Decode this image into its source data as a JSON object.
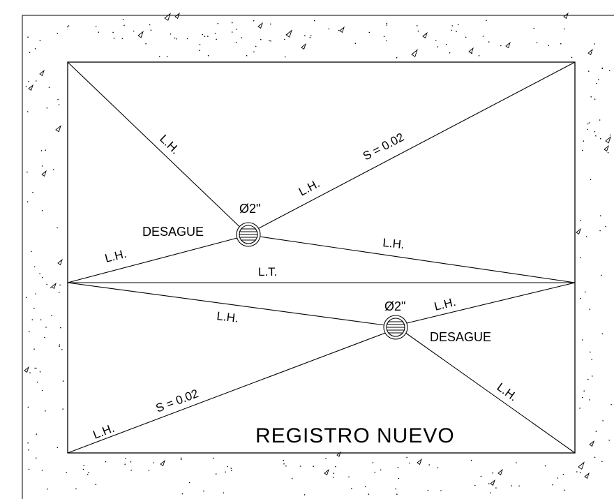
{
  "colors": {
    "line": "#000000",
    "background": "#ffffff"
  },
  "labels": {
    "lh": "L.H.",
    "lt": "L.T.",
    "slope": "S = 0.02",
    "drain_size": "Ø2\"",
    "drain": "DESAGUE",
    "title": "REGISTRO NUEVO"
  },
  "icons": [
    "floor-drain-icon",
    "concrete-aggregate-hatch"
  ]
}
